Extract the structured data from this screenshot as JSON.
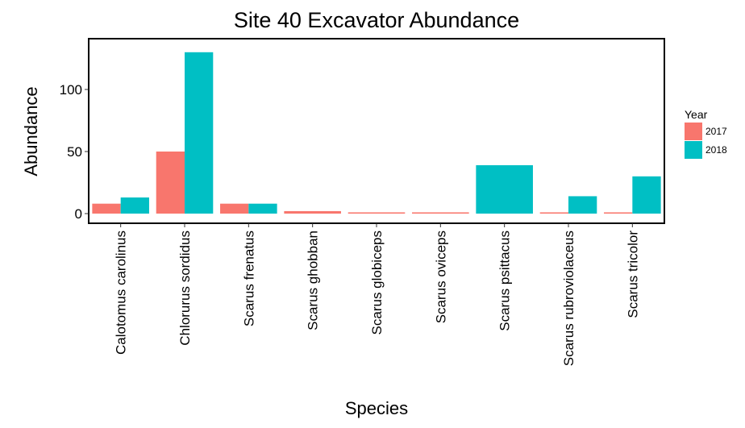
{
  "chart_data": {
    "type": "bar",
    "title": "Site 40 Excavator Abundance",
    "xlabel": "Species",
    "ylabel": "Abundance",
    "categories": [
      "Calotomus carolinus",
      "Chlorurus sordidus",
      "Scarus frenatus",
      "Scarus ghobban",
      "Scarus globiceps",
      "Scarus oviceps",
      "Scarus psittacus",
      "Scarus rubroviolaceus",
      "Scarus tricolor"
    ],
    "series": [
      {
        "name": "2017",
        "color": "#F8766D",
        "values": [
          8,
          50,
          8,
          2,
          1,
          1,
          null,
          1,
          1
        ]
      },
      {
        "name": "2018",
        "color": "#00BFC4",
        "values": [
          13,
          130,
          8,
          null,
          null,
          null,
          39,
          14,
          30
        ]
      }
    ],
    "single_year_values": {
      "Scarus ghobban": "2017",
      "Scarus globiceps": "2017",
      "Scarus oviceps": "2017",
      "Scarus psittacus": "2018"
    },
    "yticks": [
      0,
      50,
      100
    ],
    "ylim": [
      -7,
      137
    ],
    "grid": false,
    "legend": {
      "title": "Year",
      "placement": "right"
    }
  }
}
